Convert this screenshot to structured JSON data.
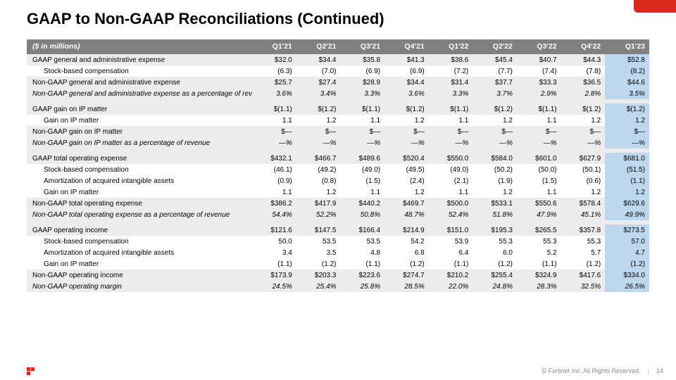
{
  "title": "GAAP to Non-GAAP Reconciliations (Continued)",
  "footer": {
    "copyright": "© Fortinet Inc. All Rights Reserved.",
    "page": "14"
  },
  "header_label": "($ in millions)",
  "columns": [
    "Q1'21",
    "Q2'21",
    "Q3'21",
    "Q4'21",
    "Q1'22",
    "Q2'22",
    "Q3'22",
    "Q4'22",
    "Q1'23"
  ],
  "rows": [
    {
      "t": "grey",
      "label": "GAAP general and administrative expense",
      "i": 0,
      "c": [
        "$32.0",
        "$34.4",
        "$35.8",
        "$41.3",
        "$38.6",
        "$45.4",
        "$40.7",
        "$44.3",
        "$52.8"
      ]
    },
    {
      "t": "white",
      "label": "Stock-based compensation",
      "i": 1,
      "c": [
        "(6.3)",
        "(7.0)",
        "(6.9)",
        "(6.9)",
        "(7.2)",
        "(7.7)",
        "(7.4)",
        "(7.8)",
        "(8.2)"
      ]
    },
    {
      "t": "grey",
      "label": "Non-GAAP general and administrative expense",
      "i": 0,
      "c": [
        "$25.7",
        "$27.4",
        "$28.9",
        "$34.4",
        "$31.4",
        "$37.7",
        "$33.3",
        "$36.5",
        "$44.6"
      ]
    },
    {
      "t": "grey-ital",
      "label": "Non-GAAP general and administrative expense as a percentage of revenue",
      "i": 0,
      "c": [
        "3.6%",
        "3.4%",
        "3.3%",
        "3.6%",
        "3.3%",
        "3.7%",
        "2.9%",
        "2.8%",
        "3.5%"
      ]
    },
    {
      "t": "spacer"
    },
    {
      "t": "grey",
      "label": "GAAP gain on IP matter",
      "i": 0,
      "c": [
        "$(1.1)",
        "$(1.2)",
        "$(1.1)",
        "$(1.2)",
        "$(1.1)",
        "$(1.2)",
        "$(1.1)",
        "$(1.2)",
        "$(1.2)"
      ]
    },
    {
      "t": "white",
      "label": "Gain on IP matter",
      "i": 1,
      "c": [
        "1.1",
        "1.2",
        "1.1",
        "1.2",
        "1.1",
        "1.2",
        "1.1",
        "1.2",
        "1.2"
      ]
    },
    {
      "t": "grey",
      "label": "Non-GAAP gain on IP matter",
      "i": 0,
      "c": [
        "$—",
        "$—",
        "$—",
        "$—",
        "$—",
        "$—",
        "$—",
        "$—",
        "$—"
      ]
    },
    {
      "t": "grey-ital",
      "label": "Non-GAAP gain on IP matter as a percentage of revenue",
      "i": 0,
      "c": [
        "—%",
        "—%",
        "—%",
        "—%",
        "—%",
        "—%",
        "—%",
        "—%",
        "—%"
      ]
    },
    {
      "t": "spacer"
    },
    {
      "t": "grey",
      "label": "GAAP total operating expense",
      "i": 0,
      "c": [
        "$432.1",
        "$466.7",
        "$489.6",
        "$520.4",
        "$550.0",
        "$584.0",
        "$601.0",
        "$627.9",
        "$681.0"
      ]
    },
    {
      "t": "white",
      "label": "Stock-based compensation",
      "i": 1,
      "c": [
        "(46.1)",
        "(49.2)",
        "(49.0)",
        "(49.5)",
        "(49.0)",
        "(50.2)",
        "(50.0)",
        "(50.1)",
        "(51.5)"
      ]
    },
    {
      "t": "white",
      "label": "Amortization of acquired intangible assets",
      "i": 1,
      "c": [
        "(0.9)",
        "(0.8)",
        "(1.5)",
        "(2.4)",
        "(2.1)",
        "(1.9)",
        "(1.5)",
        "(0.6)",
        "(1.1)"
      ]
    },
    {
      "t": "white",
      "label": "Gain on IP matter",
      "i": 1,
      "c": [
        "1.1",
        "1.2",
        "1.1",
        "1.2",
        "1.1",
        "1.2",
        "1.1",
        "1.2",
        "1.2"
      ]
    },
    {
      "t": "grey",
      "label": "Non-GAAP total operating expense",
      "i": 0,
      "c": [
        "$386.2",
        "$417.9",
        "$440.2",
        "$469.7",
        "$500.0",
        "$533.1",
        "$550.6",
        "$578.4",
        "$629.6"
      ]
    },
    {
      "t": "grey-ital",
      "label": "Non-GAAP total operating expense as a percentage of revenue",
      "i": 0,
      "c": [
        "54.4%",
        "52.2%",
        "50.8%",
        "48.7%",
        "52.4%",
        "51.8%",
        "47.9%",
        "45.1%",
        "49.9%"
      ]
    },
    {
      "t": "spacer"
    },
    {
      "t": "grey",
      "label": "GAAP operating income",
      "i": 0,
      "c": [
        "$121.6",
        "$147.5",
        "$166.4",
        "$214.9",
        "$151.0",
        "$195.3",
        "$265.5",
        "$357.8",
        "$273.5"
      ]
    },
    {
      "t": "white",
      "label": "Stock-based compensation",
      "i": 1,
      "c": [
        "50.0",
        "53.5",
        "53.5",
        "54.2",
        "53.9",
        "55.3",
        "55.3",
        "55.3",
        "57.0"
      ]
    },
    {
      "t": "white",
      "label": "Amortization of acquired intangible assets",
      "i": 1,
      "c": [
        "3.4",
        "3.5",
        "4.8",
        "6.8",
        "6.4",
        "6.0",
        "5.2",
        "5.7",
        "4.7"
      ]
    },
    {
      "t": "white",
      "label": "Gain on IP matter",
      "i": 1,
      "c": [
        "(1.1)",
        "(1.2)",
        "(1.1)",
        "(1.2)",
        "(1.1)",
        "(1.2)",
        "(1.1)",
        "(1.2)",
        "(1.2)"
      ]
    },
    {
      "t": "grey",
      "label": "Non-GAAP operating income",
      "i": 0,
      "c": [
        "$173.9",
        "$203.3",
        "$223.6",
        "$274.7",
        "$210.2",
        "$255.4",
        "$324.9",
        "$417.6",
        "$334.0"
      ]
    },
    {
      "t": "grey-ital",
      "label": "Non-GAAP operating margin",
      "i": 0,
      "c": [
        "24.5%",
        "25.4%",
        "25.8%",
        "28.5%",
        "22.0%",
        "24.8%",
        "28.3%",
        "32.5%",
        "26.5%"
      ]
    }
  ]
}
